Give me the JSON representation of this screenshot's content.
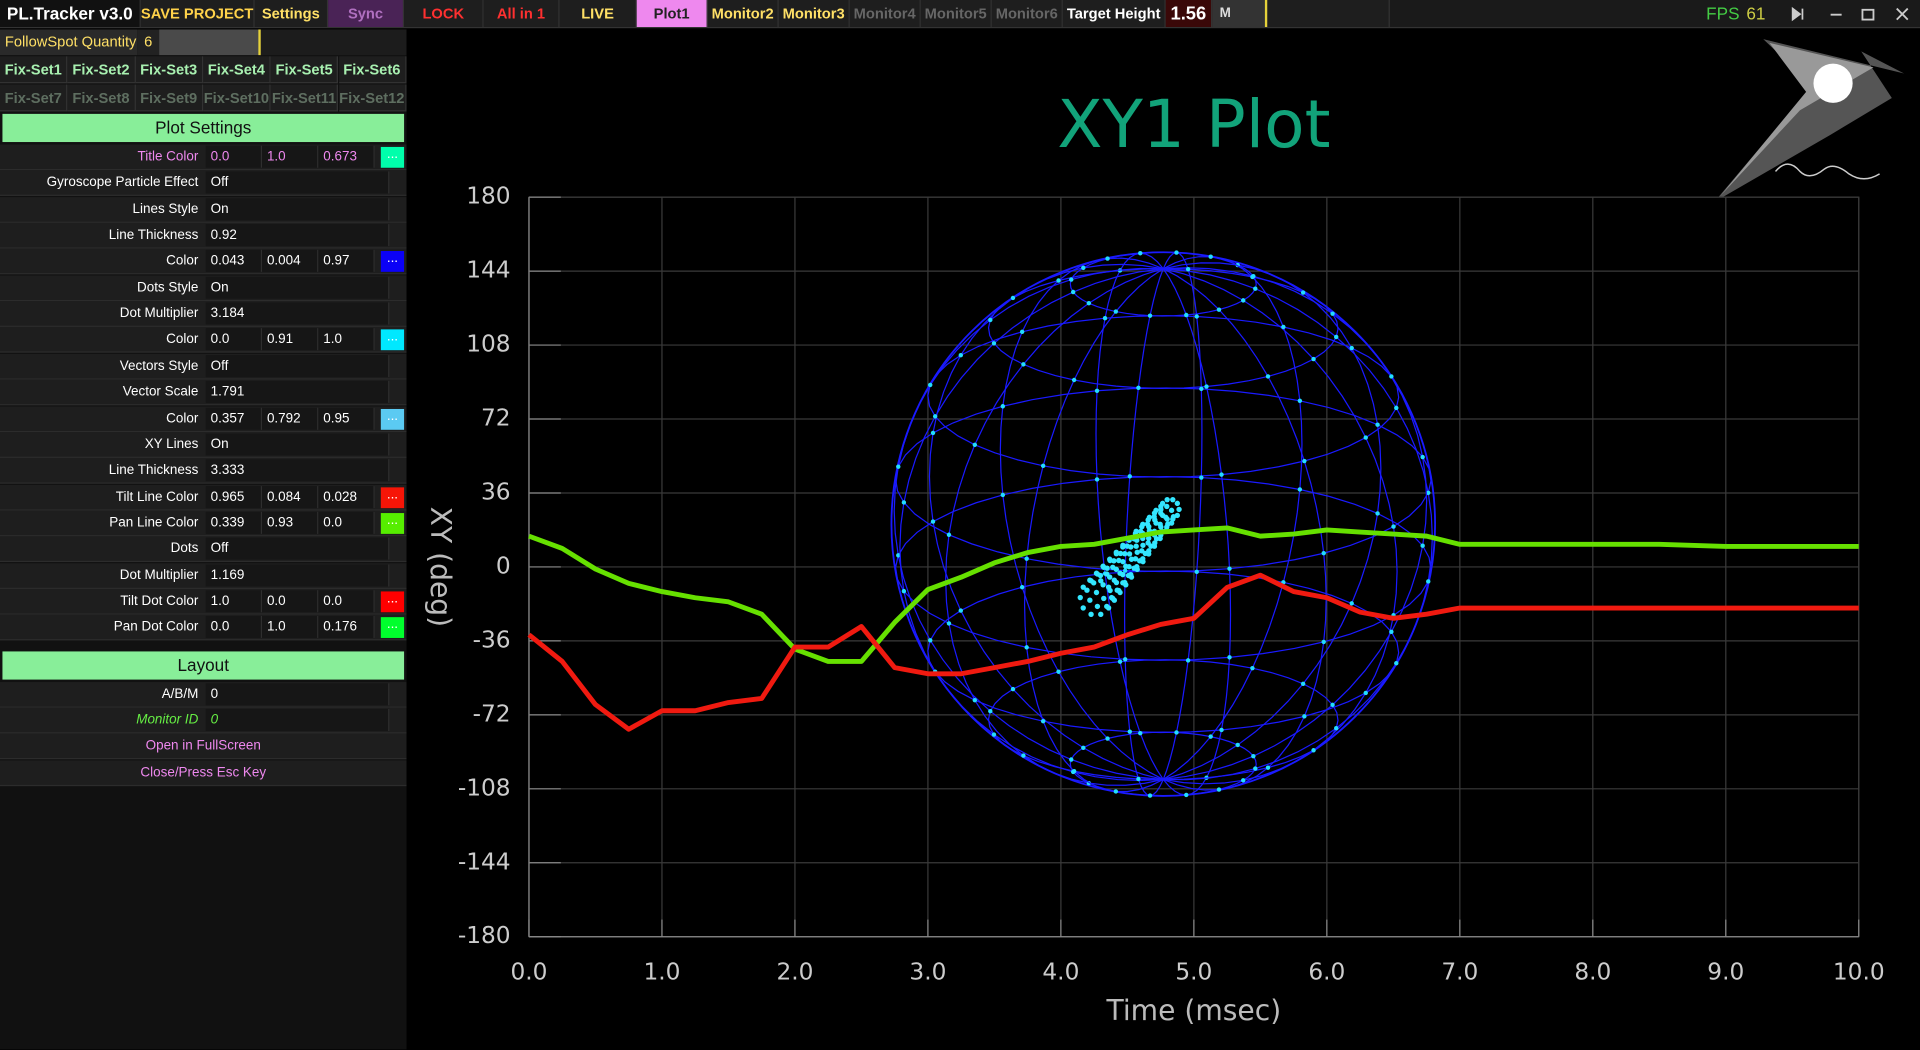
{
  "toolbar": {
    "app_title": "PL.Tracker v3.0",
    "buttons": [
      {
        "label": "SAVE PROJECT",
        "color": "#ffd24a",
        "background": "#1e1e1e"
      },
      {
        "label": "Settings",
        "color": "#ffe066",
        "background": "#1e1e1e"
      },
      {
        "label": "Sync",
        "color": "#b070c0",
        "background": "#4a2356"
      },
      {
        "label": "LOCK",
        "color": "#ff3030",
        "background": "#1e1e1e"
      },
      {
        "label": "All in 1",
        "color": "#ff3030",
        "background": "#1e1e1e"
      },
      {
        "label": "LIVE",
        "color": "#ffe066",
        "background": "#1e1e1e"
      },
      {
        "label": "Plot1",
        "color": "#222222",
        "background": "#ee88ee"
      },
      {
        "label": "Monitor2",
        "color": "#ffe066",
        "background": "#1e1e1e"
      },
      {
        "label": "Monitor3",
        "color": "#ffe066",
        "background": "#1e1e1e"
      },
      {
        "label": "Monitor4",
        "color": "#666666",
        "background": "#1e1e1e"
      },
      {
        "label": "Monitor5",
        "color": "#666666",
        "background": "#1e1e1e"
      },
      {
        "label": "Monitor6",
        "color": "#666666",
        "background": "#1e1e1e"
      },
      {
        "label": "Target Height",
        "color": "#ffffff",
        "background": "#1e1e1e"
      }
    ],
    "target_height": "1.56",
    "unit": "M",
    "fps_label": "FPS",
    "fps": 61
  },
  "left_panel": {
    "followspot": {
      "label": "FollowSpot Quantity",
      "value": "6"
    },
    "fix_sets": [
      {
        "label": "Fix-Set1",
        "color": "#a8f0b0"
      },
      {
        "label": "Fix-Set2",
        "color": "#a8f0b0"
      },
      {
        "label": "Fix-Set3",
        "color": "#a8f0b0"
      },
      {
        "label": "Fix-Set4",
        "color": "#a8f0b0"
      },
      {
        "label": "Fix-Set5",
        "color": "#a8f0b0"
      },
      {
        "label": "Fix-Set6",
        "color": "#a8f0b0"
      },
      {
        "label": "Fix-Set7",
        "color": "#5e6e60"
      },
      {
        "label": "Fix-Set8",
        "color": "#5e6e60"
      },
      {
        "label": "Fix-Set9",
        "color": "#5e6e60"
      },
      {
        "label": "Fix-Set10",
        "color": "#5e6e60"
      },
      {
        "label": "Fix-Set11",
        "color": "#5e6e60"
      },
      {
        "label": "Fix-Set12",
        "color": "#5e6e60"
      }
    ],
    "sections": [
      {
        "title": "Plot Settings",
        "rows": [
          {
            "label": "Title Color",
            "label_color": "#ee88ee",
            "values": [
              "0.0",
              "1.0",
              "0.673"
            ],
            "value_color": "#ee88ee",
            "swatch": {
              "label": "...",
              "color": "#00ffab"
            }
          },
          {
            "label": "Gyroscope Particle Effect",
            "values": [
              "Off"
            ]
          },
          {
            "label": "Lines Style",
            "values": [
              "On"
            ]
          },
          {
            "label": "Line Thickness",
            "values": [
              "0.92"
            ]
          },
          {
            "label": "Color",
            "values": [
              "0.043",
              "0.004",
              "0.97"
            ],
            "swatch": {
              "label": "...",
              "color": "#0b01f7"
            }
          },
          {
            "label": "Dots Style",
            "values": [
              "On"
            ]
          },
          {
            "label": "Dot Multiplier",
            "values": [
              "3.184"
            ]
          },
          {
            "label": "Color",
            "values": [
              "0.0",
              "0.91",
              "1.0"
            ],
            "swatch": {
              "label": "...",
              "color": "#00e8ff"
            }
          },
          {
            "label": "Vectors Style",
            "values": [
              "Off"
            ]
          },
          {
            "label": "Vector Scale",
            "values": [
              "1.791"
            ]
          },
          {
            "label": "Color",
            "values": [
              "0.357",
              "0.792",
              "0.95"
            ],
            "swatch": {
              "label": "...",
              "color": "#5bcaf2"
            }
          },
          {
            "label": "XY Lines",
            "values": [
              "On"
            ]
          },
          {
            "label": "Line Thickness",
            "values": [
              "3.333"
            ]
          },
          {
            "label": "Tilt Line Color",
            "values": [
              "0.965",
              "0.084",
              "0.028"
            ],
            "swatch": {
              "label": "...",
              "color": "#f61507"
            }
          },
          {
            "label": "Pan Line Color",
            "values": [
              "0.339",
              "0.93",
              "0.0"
            ],
            "swatch": {
              "label": "...",
              "color": "#56ed00"
            }
          },
          {
            "label": "Dots",
            "values": [
              "Off"
            ]
          },
          {
            "label": "Dot Multiplier",
            "values": [
              "1.169"
            ]
          },
          {
            "label": "Tilt Dot Color",
            "values": [
              "1.0",
              "0.0",
              "0.0"
            ],
            "swatch": {
              "label": "...",
              "color": "#ff0000"
            }
          },
          {
            "label": "Pan Dot Color",
            "values": [
              "0.0",
              "1.0",
              "0.176"
            ],
            "swatch": {
              "label": "...",
              "color": "#00ff2d"
            }
          }
        ]
      },
      {
        "title": "Layout",
        "rows": [
          {
            "label": "A/B/M",
            "values": [
              "0"
            ]
          },
          {
            "label": "Monitor ID",
            "label_color": "#66ee44",
            "values": [
              "0"
            ],
            "value_color": "#66ee44"
          },
          {
            "label": "Open in FullScreen",
            "label_color": "#ee88ee",
            "values": []
          },
          {
            "label": "Close/Press Esc Key",
            "label_color": "#ee88ee",
            "values": []
          }
        ]
      }
    ]
  },
  "chart_data": {
    "type": "line",
    "title": "XY1 Plot",
    "title_color": "#12a37a",
    "x_label": "Time (msec)",
    "y_label": "XY (deg)",
    "x": [
      0,
      0.25,
      0.5,
      0.75,
      1,
      1.25,
      1.5,
      1.75,
      2,
      2.25,
      2.5,
      2.75,
      3,
      3.25,
      3.5,
      3.75,
      4,
      4.25,
      4.5,
      4.75,
      5,
      5.25,
      5.5,
      5.75,
      6,
      6.25,
      6.5,
      6.75,
      7,
      7.5,
      8,
      8.5,
      9,
      9.5,
      10
    ],
    "series": [
      {
        "color": "#66e000",
        "values": [
          15,
          9,
          -1,
          -8,
          -12,
          -15,
          -17,
          -23,
          -40,
          -46,
          -46,
          -27,
          -11,
          -5,
          2,
          7,
          10,
          11,
          14,
          17,
          18,
          19,
          15,
          16,
          18,
          17,
          16,
          15,
          11,
          11,
          11,
          11,
          10,
          10,
          10
        ]
      },
      {
        "color": "#f01a10",
        "values": [
          -33,
          -46,
          -67,
          -79,
          -70,
          -70,
          -66,
          -64,
          -39,
          -39,
          -29,
          -49,
          -52,
          -52,
          -49,
          -46,
          -42,
          -39,
          -33,
          -28,
          -25,
          -10,
          -4,
          -12,
          -15,
          -22,
          -25,
          -23,
          -20,
          -20,
          -20,
          -20,
          -20,
          -20,
          -20
        ]
      }
    ],
    "xlim": [
      0,
      10
    ],
    "xticks": [
      {
        "value": 0,
        "label": "0.0"
      },
      {
        "value": 1,
        "label": "1.0"
      },
      {
        "value": 2,
        "label": "2.0"
      },
      {
        "value": 3,
        "label": "3.0"
      },
      {
        "value": 4,
        "label": "4.0"
      },
      {
        "value": 5,
        "label": "5.0"
      },
      {
        "value": 6,
        "label": "6.0"
      },
      {
        "value": 7,
        "label": "7.0"
      },
      {
        "value": 8,
        "label": "8.0"
      },
      {
        "value": 9,
        "label": "9.0"
      },
      {
        "value": 10,
        "label": "10.0"
      }
    ],
    "ylim": [
      -180,
      180
    ],
    "yticks": [
      180,
      144,
      108,
      72,
      36,
      0,
      -36,
      -72,
      -108,
      -144,
      -180
    ],
    "grid": true
  }
}
